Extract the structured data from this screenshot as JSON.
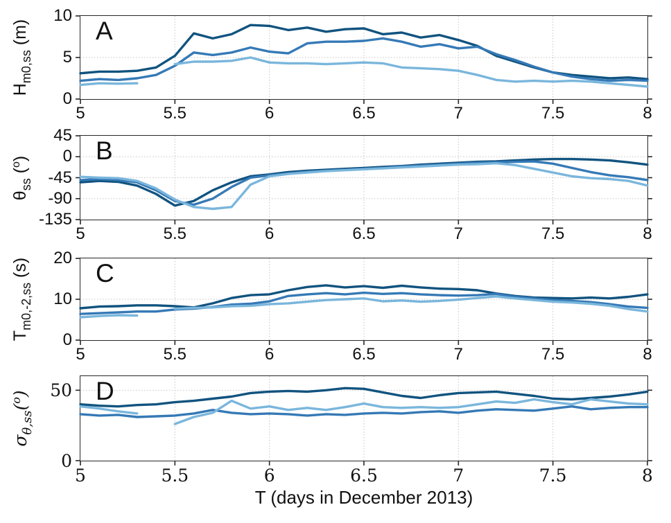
{
  "figure": {
    "xlabel": "T (days in December 2013)"
  },
  "colors": {
    "dark": "#11537f",
    "medium": "#3579b6",
    "light": "#7ab6dc",
    "grid": "#c4c4c4",
    "axis": "#262626"
  },
  "chart_data": [
    {
      "type": "line",
      "panel_label": "A",
      "ylabel": {
        "base": "H",
        "sub": "m0,ss",
        "unit_pre": " (m)",
        "unit_sup": "",
        "unit_post": ""
      },
      "xlim": [
        5,
        8
      ],
      "ylim": [
        0,
        10
      ],
      "xticks": [
        5,
        5.5,
        6,
        6.5,
        7,
        7.5,
        8
      ],
      "yticks": [
        0,
        5,
        10
      ],
      "grid": "on",
      "legend": "none",
      "x": [
        5.0,
        5.1,
        5.2,
        5.3,
        5.4,
        5.5,
        5.6,
        5.7,
        5.8,
        5.9,
        6.0,
        6.1,
        6.2,
        6.3,
        6.4,
        6.5,
        6.6,
        6.7,
        6.8,
        6.9,
        7.0,
        7.1,
        7.2,
        7.3,
        7.4,
        7.5,
        7.6,
        7.7,
        7.8,
        7.9,
        8.0
      ],
      "series": [
        {
          "name": "dark-blue-line",
          "color_key": "dark",
          "values": [
            3.1,
            3.3,
            3.3,
            3.4,
            3.8,
            5.2,
            7.9,
            7.3,
            7.8,
            8.9,
            8.8,
            8.3,
            8.6,
            8.1,
            8.4,
            8.5,
            7.8,
            8.0,
            7.4,
            7.7,
            7.1,
            6.4,
            5.2,
            4.5,
            3.8,
            3.2,
            2.9,
            2.7,
            2.5,
            2.6,
            2.4
          ]
        },
        {
          "name": "medium-blue-line",
          "color_key": "medium",
          "values": [
            2.2,
            2.4,
            2.3,
            2.5,
            2.9,
            4.0,
            5.6,
            5.3,
            5.6,
            6.2,
            5.7,
            5.5,
            6.7,
            6.9,
            6.9,
            7.0,
            7.3,
            6.9,
            6.3,
            6.6,
            6.1,
            6.3,
            5.4,
            4.7,
            3.9,
            3.2,
            2.7,
            2.4,
            2.2,
            2.3,
            2.2
          ]
        },
        {
          "name": "light-blue-line",
          "color_key": "light",
          "values": [
            1.7,
            1.9,
            1.85,
            1.9,
            null,
            4.2,
            4.5,
            4.5,
            4.6,
            5.0,
            4.4,
            4.3,
            4.3,
            4.2,
            4.3,
            4.4,
            4.3,
            3.8,
            3.7,
            3.6,
            3.4,
            2.9,
            2.3,
            2.1,
            2.2,
            2.1,
            2.2,
            2.1,
            1.9,
            1.7,
            1.5
          ]
        }
      ]
    },
    {
      "type": "line",
      "panel_label": "B",
      "ylabel": {
        "base": "θ",
        "sub": "ss",
        "unit_pre": " (",
        "unit_sup": "o",
        "unit_post": ")"
      },
      "xlim": [
        5,
        8
      ],
      "ylim": [
        -135,
        45
      ],
      "xticks": [
        5,
        5.5,
        6,
        6.5,
        7,
        7.5,
        8
      ],
      "yticks": [
        -135,
        -90,
        -45,
        0,
        45
      ],
      "grid": "on",
      "legend": "none",
      "x": [
        5.0,
        5.1,
        5.2,
        5.3,
        5.4,
        5.5,
        5.6,
        5.7,
        5.8,
        5.9,
        6.0,
        6.1,
        6.2,
        6.3,
        6.4,
        6.5,
        6.6,
        6.7,
        6.8,
        6.9,
        7.0,
        7.1,
        7.2,
        7.3,
        7.4,
        7.5,
        7.6,
        7.7,
        7.8,
        7.9,
        8.0
      ],
      "series": [
        {
          "name": "dark-blue-line",
          "color_key": "dark",
          "values": [
            -55,
            -52,
            -54,
            -62,
            -80,
            -105,
            -95,
            -72,
            -55,
            -42,
            -38,
            -33,
            -30,
            -28,
            -26,
            -24,
            -22,
            -20,
            -17,
            -15,
            -13,
            -11,
            -10,
            -8,
            -6,
            -5,
            -5,
            -6,
            -8,
            -12,
            -17
          ]
        },
        {
          "name": "medium-blue-line",
          "color_key": "medium",
          "values": [
            -50,
            -48,
            -50,
            -55,
            -72,
            -95,
            -103,
            -90,
            -65,
            -45,
            -40,
            -36,
            -32,
            -30,
            -28,
            -26,
            -24,
            -21,
            -19,
            -17,
            -15,
            -13,
            -12,
            -11,
            -10,
            -15,
            -24,
            -33,
            -40,
            -44,
            -50
          ]
        },
        {
          "name": "light-blue-line",
          "color_key": "light",
          "values": [
            -43,
            -45,
            -46,
            -52,
            -68,
            -92,
            -108,
            -112,
            -108,
            -60,
            -42,
            -37,
            -34,
            -31,
            -29,
            -27,
            -25,
            -23,
            -21,
            -19,
            -17,
            -16,
            -14,
            -18,
            -26,
            -34,
            -42,
            -46,
            -48,
            -52,
            -62
          ]
        }
      ]
    },
    {
      "type": "line",
      "panel_label": "C",
      "ylabel": {
        "base": "T",
        "sub": "m0,-2,ss",
        "unit_pre": " (s)",
        "unit_sup": "",
        "unit_post": ""
      },
      "xlim": [
        5,
        8
      ],
      "ylim": [
        0,
        20
      ],
      "xticks": [
        5,
        5.5,
        6,
        6.5,
        7,
        7.5,
        8
      ],
      "yticks": [
        0,
        10,
        20
      ],
      "grid": "on",
      "legend": "none",
      "x": [
        5.0,
        5.1,
        5.2,
        5.3,
        5.4,
        5.5,
        5.6,
        5.7,
        5.8,
        5.9,
        6.0,
        6.1,
        6.2,
        6.3,
        6.4,
        6.5,
        6.6,
        6.7,
        6.8,
        6.9,
        7.0,
        7.1,
        7.2,
        7.3,
        7.4,
        7.5,
        7.6,
        7.7,
        7.8,
        7.9,
        8.0
      ],
      "series": [
        {
          "name": "dark-blue-line",
          "color_key": "dark",
          "values": [
            7.8,
            8.2,
            8.3,
            8.5,
            8.5,
            8.3,
            8.0,
            9.0,
            10.3,
            11.0,
            11.2,
            12.2,
            13.0,
            13.4,
            12.9,
            13.2,
            12.8,
            13.3,
            12.9,
            12.6,
            12.5,
            12.2,
            11.4,
            10.8,
            10.4,
            10.3,
            10.2,
            10.4,
            10.2,
            10.6,
            11.2
          ]
        },
        {
          "name": "medium-blue-line",
          "color_key": "medium",
          "values": [
            6.4,
            6.6,
            6.8,
            7.0,
            7.0,
            7.5,
            7.7,
            8.1,
            8.7,
            8.9,
            9.5,
            10.8,
            11.2,
            11.5,
            11.2,
            11.6,
            11.3,
            11.5,
            11.2,
            11.0,
            10.9,
            11.0,
            11.3,
            10.6,
            10.2,
            9.8,
            9.6,
            9.3,
            8.8,
            8.2,
            7.9
          ]
        },
        {
          "name": "light-blue-line",
          "color_key": "light",
          "values": [
            5.6,
            5.9,
            6.1,
            6.0,
            null,
            7.7,
            7.9,
            8.0,
            8.3,
            8.4,
            8.8,
            9.0,
            9.4,
            9.8,
            10.0,
            10.2,
            9.5,
            9.7,
            9.4,
            9.6,
            9.9,
            10.3,
            10.7,
            10.2,
            9.8,
            9.4,
            9.2,
            8.9,
            8.4,
            7.6,
            7.0
          ]
        }
      ]
    },
    {
      "type": "line",
      "panel_label": "D",
      "ylabel": {
        "base": "σ",
        "sub": "θ,ss",
        "unit_pre": "(",
        "unit_sup": "o",
        "unit_post": ")"
      },
      "xlim": [
        5,
        8
      ],
      "ylim": [
        0,
        60
      ],
      "xticks": [
        5,
        5.5,
        6,
        6.5,
        7,
        7.5,
        8
      ],
      "yticks": [
        0,
        50
      ],
      "grid": "on",
      "legend": "none",
      "x": [
        5.0,
        5.1,
        5.2,
        5.3,
        5.4,
        5.5,
        5.6,
        5.7,
        5.8,
        5.9,
        6.0,
        6.1,
        6.2,
        6.3,
        6.4,
        6.5,
        6.6,
        6.7,
        6.8,
        6.9,
        7.0,
        7.1,
        7.2,
        7.3,
        7.4,
        7.5,
        7.6,
        7.7,
        7.8,
        7.9,
        8.0
      ],
      "series": [
        {
          "name": "dark-blue-line",
          "color_key": "dark",
          "values": [
            40,
            39,
            38.5,
            39.5,
            40,
            41.5,
            42.5,
            44,
            45.5,
            48,
            49,
            49.5,
            49,
            50,
            51.5,
            51,
            48.5,
            46,
            44.5,
            46.5,
            48,
            48.5,
            49,
            47.5,
            46,
            44,
            43.5,
            44.5,
            45.5,
            47,
            49
          ]
        },
        {
          "name": "medium-blue-line",
          "color_key": "medium",
          "values": [
            33,
            32,
            32.5,
            31,
            31.5,
            32,
            33.5,
            36,
            34,
            33,
            33.5,
            33,
            32,
            33,
            32.5,
            33.5,
            34,
            33.5,
            34.5,
            35,
            34,
            35.5,
            36.5,
            36,
            35.5,
            37,
            38.5,
            36.5,
            37.5,
            38,
            38
          ]
        },
        {
          "name": "light-blue-line",
          "color_key": "light",
          "values": [
            38.5,
            37,
            35,
            33.5,
            null,
            26,
            31,
            34,
            42.5,
            37,
            38.5,
            36,
            37.5,
            36,
            38,
            40.5,
            38,
            37.5,
            38,
            37.5,
            38,
            40,
            42,
            41,
            43.5,
            41.5,
            40,
            43.5,
            42,
            40.5,
            40
          ]
        }
      ]
    }
  ]
}
